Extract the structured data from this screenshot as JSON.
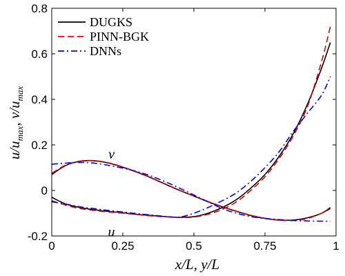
{
  "chart_data": {
    "type": "line",
    "xlabel": "x/L, y/L",
    "ylabel": "u/u_max, v/u_max",
    "xlim": [
      0,
      1
    ],
    "ylim": [
      -0.2,
      0.8
    ],
    "xticks": [
      0,
      0.25,
      0.5,
      0.75,
      1
    ],
    "xtick_labels": [
      "0",
      "0.25",
      "0.5",
      "0.75",
      "1"
    ],
    "yticks": [
      -0.2,
      0,
      0.2,
      0.4,
      0.6,
      0.8
    ],
    "ytick_labels": [
      "-0.2",
      "0",
      "0.2",
      "0.4",
      "0.6",
      "0.8"
    ],
    "grid": false,
    "legend_position": "top-left",
    "annotations": [
      {
        "text": "v",
        "x": 0.21,
        "y": 0.16
      },
      {
        "text": "u",
        "x": 0.21,
        "y": -0.18
      }
    ],
    "series": [
      {
        "name": "DUGKS",
        "profile": "u",
        "color": "#000000",
        "dash": "solid",
        "x": [
          0,
          0.05,
          0.1,
          0.15,
          0.2,
          0.25,
          0.3,
          0.35,
          0.4,
          0.45,
          0.5,
          0.55,
          0.6,
          0.65,
          0.7,
          0.75,
          0.8,
          0.85,
          0.9,
          0.95,
          0.98
        ],
        "y": [
          -0.03,
          -0.06,
          -0.075,
          -0.085,
          -0.092,
          -0.098,
          -0.105,
          -0.11,
          -0.115,
          -0.118,
          -0.115,
          -0.1,
          -0.075,
          -0.04,
          0.01,
          0.07,
          0.15,
          0.25,
          0.38,
          0.54,
          0.65
        ]
      },
      {
        "name": "PINN-BGK",
        "profile": "u",
        "color": "#e00000",
        "dash": "dashed",
        "x": [
          0,
          0.05,
          0.1,
          0.15,
          0.2,
          0.25,
          0.3,
          0.35,
          0.4,
          0.45,
          0.5,
          0.55,
          0.6,
          0.65,
          0.7,
          0.75,
          0.8,
          0.85,
          0.9,
          0.95,
          0.98
        ],
        "y": [
          -0.045,
          -0.065,
          -0.08,
          -0.088,
          -0.095,
          -0.1,
          -0.106,
          -0.112,
          -0.116,
          -0.119,
          -0.117,
          -0.105,
          -0.083,
          -0.05,
          0.0,
          0.06,
          0.14,
          0.24,
          0.37,
          0.57,
          0.72
        ]
      },
      {
        "name": "DNNs",
        "profile": "u",
        "color": "#0000ee",
        "dash": "dashdot",
        "x": [
          0,
          0.05,
          0.1,
          0.15,
          0.2,
          0.25,
          0.3,
          0.35,
          0.4,
          0.45,
          0.5,
          0.55,
          0.6,
          0.65,
          0.7,
          0.75,
          0.8,
          0.85,
          0.9,
          0.95,
          0.98
        ],
        "y": [
          -0.05,
          -0.06,
          -0.072,
          -0.08,
          -0.088,
          -0.095,
          -0.102,
          -0.108,
          -0.114,
          -0.117,
          -0.1,
          -0.075,
          -0.045,
          -0.01,
          0.04,
          0.1,
          0.17,
          0.26,
          0.34,
          0.42,
          0.5
        ]
      },
      {
        "name": "DUGKS",
        "profile": "v",
        "color": "#000000",
        "dash": "solid",
        "x": [
          0,
          0.05,
          0.1,
          0.15,
          0.2,
          0.25,
          0.3,
          0.35,
          0.4,
          0.45,
          0.5,
          0.55,
          0.6,
          0.65,
          0.7,
          0.75,
          0.8,
          0.85,
          0.9,
          0.95,
          0.98
        ],
        "y": [
          0.07,
          0.11,
          0.128,
          0.13,
          0.12,
          0.102,
          0.08,
          0.055,
          0.027,
          0.0,
          -0.025,
          -0.05,
          -0.072,
          -0.092,
          -0.11,
          -0.123,
          -0.13,
          -0.13,
          -0.12,
          -0.1,
          -0.075
        ]
      },
      {
        "name": "PINN-BGK",
        "profile": "v",
        "color": "#e00000",
        "dash": "dashed",
        "x": [
          0,
          0.05,
          0.1,
          0.15,
          0.2,
          0.25,
          0.3,
          0.35,
          0.4,
          0.45,
          0.5,
          0.55,
          0.6,
          0.65,
          0.7,
          0.75,
          0.8,
          0.85,
          0.9,
          0.95,
          0.98
        ],
        "y": [
          0.075,
          0.112,
          0.129,
          0.131,
          0.121,
          0.103,
          0.081,
          0.056,
          0.028,
          0.001,
          -0.024,
          -0.049,
          -0.071,
          -0.091,
          -0.109,
          -0.122,
          -0.131,
          -0.132,
          -0.123,
          -0.1,
          -0.08
        ]
      },
      {
        "name": "DNNs",
        "profile": "v",
        "color": "#0000ee",
        "dash": "dashdot",
        "x": [
          0,
          0.05,
          0.1,
          0.15,
          0.2,
          0.25,
          0.3,
          0.35,
          0.4,
          0.45,
          0.5,
          0.55,
          0.6,
          0.65,
          0.7,
          0.75,
          0.8,
          0.85,
          0.9,
          0.95,
          0.98
        ],
        "y": [
          0.115,
          0.12,
          0.123,
          0.12,
          0.11,
          0.098,
          0.083,
          0.063,
          0.038,
          0.01,
          -0.02,
          -0.05,
          -0.08,
          -0.1,
          -0.115,
          -0.123,
          -0.128,
          -0.132,
          -0.134,
          -0.135,
          -0.135
        ]
      }
    ]
  }
}
